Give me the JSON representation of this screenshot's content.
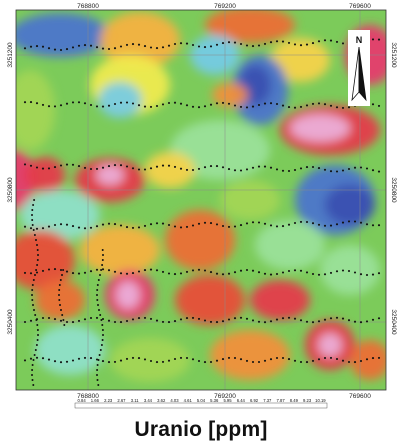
{
  "title": "Uranio [ppm]",
  "north_label": "N",
  "x_ticks": [
    "768800",
    "769200",
    "769600"
  ],
  "y_ticks": [
    "3251200",
    "3250800",
    "3250400"
  ],
  "legend": {
    "labels": [
      "0.84",
      "1.66",
      "2.23",
      "2.67",
      "3.11",
      "3.44",
      "3.62",
      "4.03",
      "4.61",
      "5.04",
      "5.36",
      "5.95",
      "6.44",
      "6.92",
      "7.37",
      "7.87",
      "8.49",
      "9.23",
      "10.19"
    ],
    "colors": [
      "#3b4fb0",
      "#4a73cf",
      "#5aa0e3",
      "#74cbe8",
      "#8fe1cc",
      "#9be29b",
      "#7ccb5a",
      "#a4d655",
      "#cfe24e",
      "#f2ec4e",
      "#f9d349",
      "#f8b13f",
      "#f48e3a",
      "#ef6b35",
      "#ea4a36",
      "#e73749",
      "#e8376c",
      "#e78bbd",
      "#ecb2dd"
    ]
  },
  "colors": {
    "grid": "#8a8a8a",
    "samples": "#111111",
    "frame": "#333333"
  }
}
